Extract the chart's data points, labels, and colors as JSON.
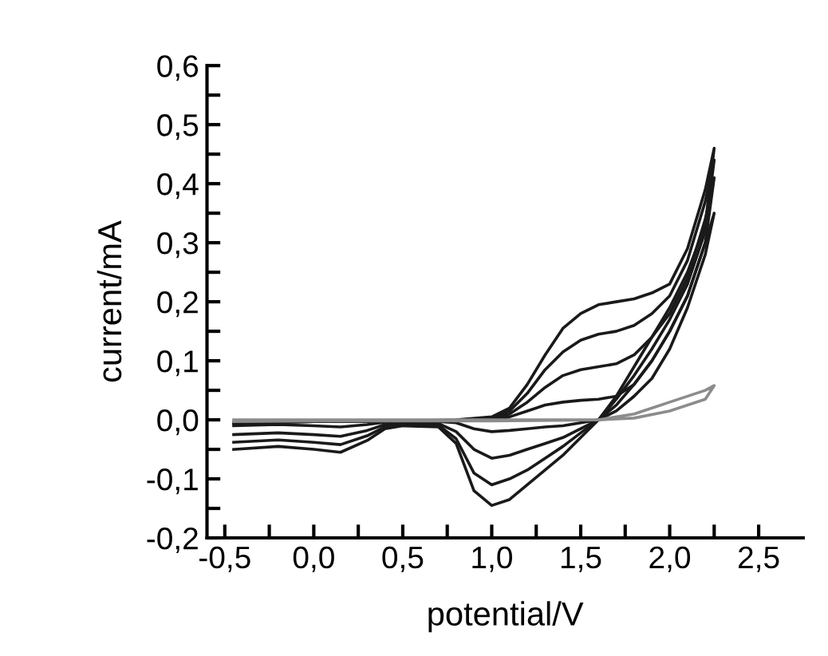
{
  "chart_data": {
    "type": "line",
    "xlabel": "potential/V",
    "ylabel": "current/mA",
    "xlim": [
      -0.6,
      2.75
    ],
    "ylim": [
      -0.2,
      0.6
    ],
    "xticks": [
      {
        "value": -0.5,
        "label": "-0,5"
      },
      {
        "value": -0.25,
        "label": null
      },
      {
        "value": 0.0,
        "label": "0,0"
      },
      {
        "value": 0.25,
        "label": null
      },
      {
        "value": 0.5,
        "label": "0,5"
      },
      {
        "value": 0.75,
        "label": null
      },
      {
        "value": 1.0,
        "label": "1,0"
      },
      {
        "value": 1.25,
        "label": null
      },
      {
        "value": 1.5,
        "label": "1,5"
      },
      {
        "value": 1.75,
        "label": null
      },
      {
        "value": 2.0,
        "label": "2,0"
      },
      {
        "value": 2.25,
        "label": null
      },
      {
        "value": 2.5,
        "label": "2,5"
      }
    ],
    "yticks": [
      {
        "value": -0.2,
        "label": "-0,2"
      },
      {
        "value": -0.15,
        "label": null
      },
      {
        "value": -0.1,
        "label": "-0,1"
      },
      {
        "value": -0.05,
        "label": null
      },
      {
        "value": 0.0,
        "label": "0,0"
      },
      {
        "value": 0.05,
        "label": null
      },
      {
        "value": 0.1,
        "label": "0,1"
      },
      {
        "value": 0.15,
        "label": null
      },
      {
        "value": 0.2,
        "label": "0,2"
      },
      {
        "value": 0.25,
        "label": null
      },
      {
        "value": 0.3,
        "label": "0,3"
      },
      {
        "value": 0.35,
        "label": null
      },
      {
        "value": 0.4,
        "label": "0,4"
      },
      {
        "value": 0.45,
        "label": null
      },
      {
        "value": 0.5,
        "label": "0,5"
      },
      {
        "value": 0.55,
        "label": null
      },
      {
        "value": 0.6,
        "label": "0,6"
      }
    ],
    "grid": false,
    "legend": false,
    "marker": "none",
    "line_style": "solid",
    "series": [
      {
        "color": "#1a1a1a",
        "x": [
          -0.45,
          -0.2,
          0.0,
          0.2,
          0.5,
          0.8,
          1.0,
          1.1,
          1.2,
          1.3,
          1.4,
          1.5,
          1.6,
          1.7,
          1.8,
          1.9,
          2.0,
          2.1,
          2.2,
          2.25,
          2.2,
          2.1,
          2.0,
          1.9,
          1.8,
          1.7,
          1.6,
          1.5,
          1.4,
          1.3,
          1.2,
          1.1,
          1.0,
          0.9,
          0.8,
          0.7,
          0.5,
          0.4,
          0.3,
          0.15,
          0.0,
          -0.2,
          -0.45
        ],
        "values": [
          -0.005,
          -0.004,
          -0.003,
          -0.003,
          -0.002,
          -0.001,
          0.0,
          0.005,
          0.015,
          0.025,
          0.03,
          0.033,
          0.035,
          0.04,
          0.06,
          0.1,
          0.15,
          0.21,
          0.3,
          0.35,
          0.28,
          0.19,
          0.12,
          0.07,
          0.04,
          0.015,
          0.0,
          -0.005,
          -0.01,
          -0.012,
          -0.015,
          -0.018,
          -0.02,
          -0.015,
          -0.005,
          -0.003,
          -0.003,
          -0.004,
          -0.008,
          -0.012,
          -0.01,
          -0.008,
          -0.01
        ]
      },
      {
        "color": "#1a1a1a",
        "x": [
          -0.45,
          -0.2,
          0.0,
          0.2,
          0.5,
          0.8,
          1.0,
          1.1,
          1.2,
          1.3,
          1.4,
          1.5,
          1.6,
          1.7,
          1.8,
          1.9,
          2.0,
          2.1,
          2.2,
          2.25,
          2.2,
          2.1,
          2.0,
          1.9,
          1.8,
          1.7,
          1.6,
          1.5,
          1.4,
          1.3,
          1.2,
          1.1,
          1.0,
          0.9,
          0.8,
          0.7,
          0.5,
          0.4,
          0.3,
          0.15,
          0.0,
          -0.2,
          -0.45
        ],
        "values": [
          -0.005,
          -0.004,
          -0.003,
          -0.003,
          -0.002,
          -0.001,
          0.002,
          0.01,
          0.03,
          0.055,
          0.075,
          0.085,
          0.09,
          0.095,
          0.11,
          0.14,
          0.18,
          0.24,
          0.34,
          0.41,
          0.3,
          0.21,
          0.15,
          0.1,
          0.06,
          0.025,
          0.0,
          -0.015,
          -0.03,
          -0.04,
          -0.05,
          -0.06,
          -0.065,
          -0.05,
          -0.02,
          -0.006,
          -0.005,
          -0.008,
          -0.018,
          -0.028,
          -0.025,
          -0.022,
          -0.025
        ]
      },
      {
        "color": "#1a1a1a",
        "x": [
          -0.45,
          -0.2,
          0.0,
          0.2,
          0.5,
          0.8,
          1.0,
          1.1,
          1.2,
          1.3,
          1.4,
          1.5,
          1.6,
          1.7,
          1.8,
          1.9,
          2.0,
          2.1,
          2.2,
          2.25,
          2.2,
          2.1,
          2.0,
          1.9,
          1.8,
          1.7,
          1.6,
          1.5,
          1.4,
          1.3,
          1.2,
          1.1,
          1.0,
          0.9,
          0.8,
          0.7,
          0.5,
          0.4,
          0.3,
          0.15,
          0.0,
          -0.2,
          -0.45
        ],
        "values": [
          -0.005,
          -0.004,
          -0.003,
          -0.003,
          -0.002,
          -0.001,
          0.004,
          0.015,
          0.045,
          0.085,
          0.115,
          0.135,
          0.145,
          0.15,
          0.16,
          0.18,
          0.21,
          0.27,
          0.37,
          0.44,
          0.32,
          0.23,
          0.17,
          0.12,
          0.075,
          0.035,
          0.0,
          -0.022,
          -0.045,
          -0.065,
          -0.085,
          -0.1,
          -0.11,
          -0.09,
          -0.032,
          -0.009,
          -0.008,
          -0.012,
          -0.027,
          -0.042,
          -0.038,
          -0.034,
          -0.038
        ]
      },
      {
        "color": "#1a1a1a",
        "x": [
          -0.45,
          -0.2,
          0.0,
          0.2,
          0.5,
          0.8,
          1.0,
          1.1,
          1.2,
          1.3,
          1.4,
          1.5,
          1.6,
          1.7,
          1.8,
          1.9,
          2.0,
          2.1,
          2.2,
          2.25,
          2.2,
          2.1,
          2.0,
          1.9,
          1.8,
          1.7,
          1.6,
          1.5,
          1.4,
          1.3,
          1.2,
          1.1,
          1.0,
          0.9,
          0.8,
          0.7,
          0.5,
          0.4,
          0.3,
          0.15,
          0.0,
          -0.2,
          -0.45
        ],
        "values": [
          -0.005,
          -0.003,
          -0.002,
          -0.002,
          -0.002,
          0.0,
          0.005,
          0.02,
          0.06,
          0.11,
          0.155,
          0.18,
          0.195,
          0.2,
          0.205,
          0.215,
          0.23,
          0.29,
          0.39,
          0.46,
          0.33,
          0.25,
          0.19,
          0.14,
          0.09,
          0.04,
          0.0,
          -0.03,
          -0.06,
          -0.085,
          -0.11,
          -0.135,
          -0.145,
          -0.12,
          -0.04,
          -0.012,
          -0.01,
          -0.015,
          -0.035,
          -0.055,
          -0.05,
          -0.045,
          -0.05
        ]
      },
      {
        "color": "#8c8c8c",
        "x": [
          -0.45,
          0.0,
          0.5,
          1.0,
          1.6,
          1.8,
          2.0,
          2.2,
          2.25,
          2.2,
          2.0,
          1.8,
          1.6,
          1.0,
          0.0,
          -0.45
        ],
        "values": [
          0.0,
          0.0,
          0.0,
          0.0,
          0.0,
          0.01,
          0.03,
          0.05,
          0.058,
          0.035,
          0.015,
          0.003,
          0.0,
          -0.002,
          -0.002,
          -0.003
        ]
      }
    ]
  }
}
